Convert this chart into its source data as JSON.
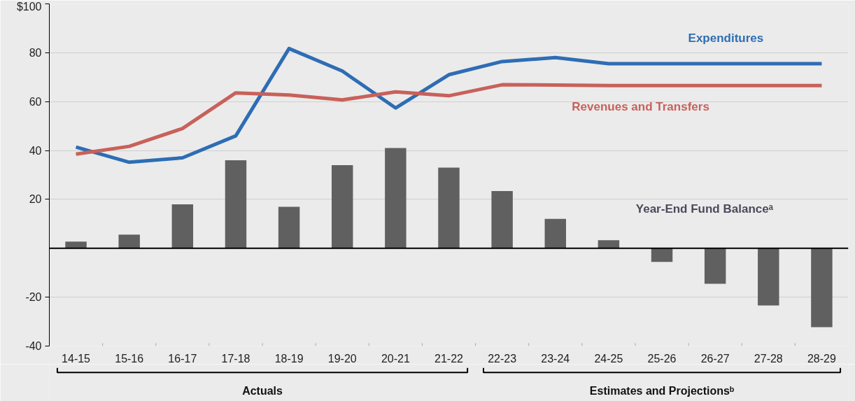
{
  "chart_data": {
    "type": "bar",
    "categories": [
      "14-15",
      "15-16",
      "16-17",
      "17-18",
      "18-19",
      "19-20",
      "20-21",
      "21-22",
      "22-23",
      "23-24",
      "24-25",
      "25-26",
      "26-27",
      "27-28",
      "28-29"
    ],
    "series": [
      {
        "name": "Year-End Fund Balanceᵃ",
        "color": "#606060",
        "values": [
          2.7,
          5.6,
          18,
          36,
          17,
          34,
          41,
          33,
          23.4,
          12,
          3.3,
          -5.6,
          -14.5,
          -23.4,
          -32.3
        ]
      },
      {
        "name": "Expenditures",
        "type": "line",
        "color": "#2e6db4",
        "values": [
          41.4,
          35.2,
          37,
          46,
          81.7,
          72.5,
          57.4,
          71,
          76.4,
          78,
          75.5,
          75.5,
          75.5,
          75.5,
          75.5
        ]
      },
      {
        "name": "Revenues and Transfers",
        "type": "line",
        "color": "#c8615a",
        "values": [
          38.5,
          41.7,
          49,
          63.6,
          62.7,
          60.7,
          64,
          62.4,
          66.9,
          66.8,
          66.6,
          66.6,
          66.6,
          66.6,
          66.6
        ]
      }
    ],
    "ylim": [
      -40,
      100
    ],
    "yticks": [
      {
        "value": 100,
        "label": "$100"
      },
      80,
      60,
      40,
      20,
      -20,
      -40
    ],
    "grid": "y",
    "legend": false,
    "ref_lines": [
      {
        "axis": "y",
        "value": 0,
        "label": null,
        "color": "#000000"
      }
    ],
    "annotations": [
      "Actuals",
      "Estimates and Projectionsᵇ"
    ]
  }
}
